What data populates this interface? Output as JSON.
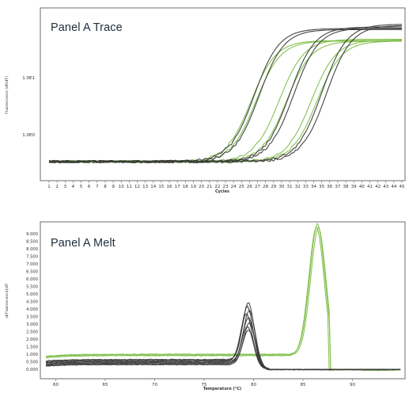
{
  "panels": {
    "trace": {
      "label": "Panel A Trace"
    },
    "melt": {
      "label": "Panel A Melt"
    }
  },
  "chart_data": [
    {
      "type": "line",
      "ylabel": "Fluorescence (dR/dT)",
      "xlabel": "Cycles",
      "x_ticks": [
        "1",
        "2",
        "3",
        "4",
        "5",
        "6",
        "7",
        "8",
        "9",
        "10",
        "11",
        "12",
        "13",
        "14",
        "15",
        "16",
        "17",
        "18",
        "19",
        "20",
        "21",
        "22",
        "23",
        "24",
        "25",
        "26",
        "27",
        "28",
        "29",
        "30",
        "31",
        "32",
        "33",
        "34",
        "35",
        "36",
        "37",
        "38",
        "39",
        "40",
        "41",
        "42",
        "43",
        "44",
        "45"
      ],
      "y_ticks": [
        "1.0E1",
        "1.0E0"
      ],
      "y_scale": "log",
      "colors": {
        "green": "#7fbf4a",
        "black": "#3a3a3a"
      },
      "series": [
        {
          "color": "green",
          "ct": 23.0,
          "plateau": 41.2,
          "values": []
        },
        {
          "color": "green",
          "ct": 23.6,
          "plateau": 41.8,
          "values": []
        },
        {
          "color": "green",
          "ct": 26.5,
          "plateau": 39.5,
          "values": []
        },
        {
          "color": "green",
          "ct": 27.4,
          "plateau": 41.8,
          "values": []
        },
        {
          "color": "green",
          "ct": 30.5,
          "plateau": 40.5,
          "values": []
        },
        {
          "color": "green",
          "ct": 31.2,
          "plateau": 41.8,
          "values": []
        },
        {
          "color": "black",
          "ct": 23.4,
          "plateau": 26.0,
          "values": []
        },
        {
          "color": "black",
          "ct": 24.0,
          "plateau": 27.3,
          "values": []
        },
        {
          "color": "black",
          "ct": 27.8,
          "plateau": 24.0,
          "values": []
        },
        {
          "color": "black",
          "ct": 28.3,
          "plateau": 25.5,
          "values": []
        },
        {
          "color": "black",
          "ct": 31.8,
          "plateau": 20.5,
          "values": []
        },
        {
          "color": "black",
          "ct": 32.4,
          "plateau": 22.0,
          "values": []
        }
      ]
    },
    {
      "type": "line",
      "ylabel": "-d(Fluorescence)/dT",
      "xlabel": "Temperature (°C)",
      "x_ticks": [
        "60",
        "65",
        "70",
        "75",
        "80",
        "85",
        "90"
      ],
      "y_ticks": [
        "0.000",
        "0.500",
        "1.000",
        "1.500",
        "2.000",
        "2.500",
        "3.000",
        "3.500",
        "4.000",
        "4.500",
        "5.000",
        "5.500",
        "6.000",
        "6.500",
        "7.000",
        "7.500",
        "8.000",
        "8.500",
        "9.000"
      ],
      "ylim": [
        0,
        9.0
      ],
      "colors": {
        "green": "#7fbf4a",
        "black": "#3a3a3a"
      },
      "series": [
        {
          "color": "green",
          "base": 0.85,
          "plateau": 1.0,
          "peak_x": 86.5,
          "peak": 8.7
        },
        {
          "color": "green",
          "base": 0.8,
          "plateau": 0.95,
          "peak_x": 86.6,
          "peak": 8.5
        },
        {
          "color": "green",
          "base": 0.75,
          "plateau": 0.9,
          "peak_x": 86.4,
          "peak": 8.6
        },
        {
          "color": "black",
          "base": 0.55,
          "plateau": 0.65,
          "peak_x": 79.5,
          "peak": 3.8
        },
        {
          "color": "black",
          "base": 0.5,
          "plateau": 0.6,
          "peak_x": 79.4,
          "peak": 3.6
        },
        {
          "color": "black",
          "base": 0.45,
          "plateau": 0.55,
          "peak_x": 79.6,
          "peak": 3.4
        },
        {
          "color": "black",
          "base": 0.4,
          "plateau": 0.5,
          "peak_x": 79.3,
          "peak": 3.2
        },
        {
          "color": "black",
          "base": 0.35,
          "plateau": 0.45,
          "peak_x": 79.5,
          "peak": 3.0
        },
        {
          "color": "black",
          "base": 0.3,
          "plateau": 0.4,
          "peak_x": 79.6,
          "peak": 2.7
        },
        {
          "color": "black",
          "base": 0.25,
          "plateau": 0.35,
          "peak_x": 79.4,
          "peak": 2.5
        },
        {
          "color": "black",
          "base": 0.2,
          "plateau": 0.3,
          "peak_x": 79.5,
          "peak": 2.3
        }
      ]
    }
  ]
}
